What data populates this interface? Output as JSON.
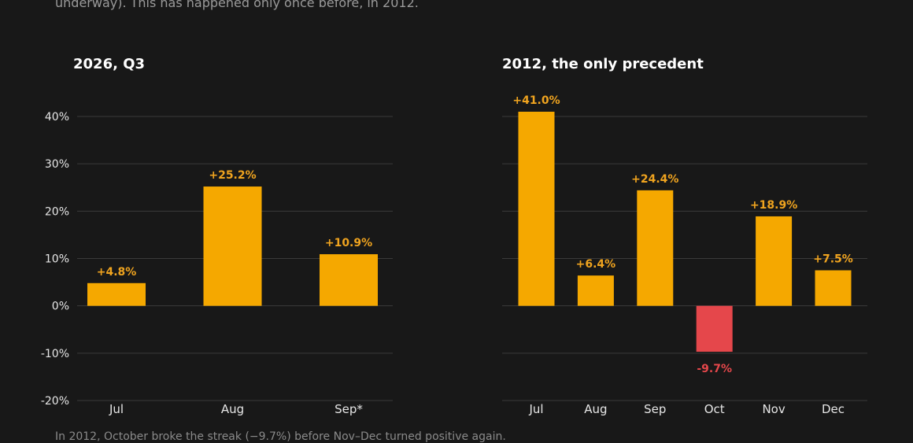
{
  "subtitle": "underway). This has happened only once before, in 2012.",
  "footnote": "In 2012, October broke the streak (−9.7%) before Nov–Dec turned positive again.",
  "colors": {
    "background": "#181818",
    "positive": "#f5a800",
    "negative": "#e5474b",
    "positive_label": "#f0a41f",
    "negative_label": "#e5474b"
  },
  "chart_data": [
    {
      "type": "bar",
      "title": "2026, Q3",
      "categories": [
        "Jul",
        "Aug",
        "Sep*"
      ],
      "values": [
        4.8,
        25.2,
        10.9
      ],
      "data_labels": [
        "+4.8%",
        "+25.2%",
        "+10.9%"
      ],
      "ylim": [
        -20,
        40
      ],
      "yticks": [
        -20,
        -10,
        0,
        10,
        20,
        30,
        40
      ],
      "ytick_labels": [
        "-20%",
        "-10%",
        "0%",
        "10%",
        "20%",
        "30%",
        "40%"
      ],
      "grid": true
    },
    {
      "type": "bar",
      "title": "2012, the only precedent",
      "categories": [
        "Jul",
        "Aug",
        "Sep",
        "Oct",
        "Nov",
        "Dec"
      ],
      "values": [
        41.0,
        6.4,
        24.4,
        -9.7,
        18.9,
        7.5
      ],
      "data_labels": [
        "+41.0%",
        "+6.4%",
        "+24.4%",
        "-9.7%",
        "+18.9%",
        "+7.5%"
      ],
      "ylim": [
        -20,
        40
      ],
      "yticks": [
        -20,
        -10,
        0,
        10,
        20,
        30,
        40
      ],
      "grid": true
    }
  ]
}
